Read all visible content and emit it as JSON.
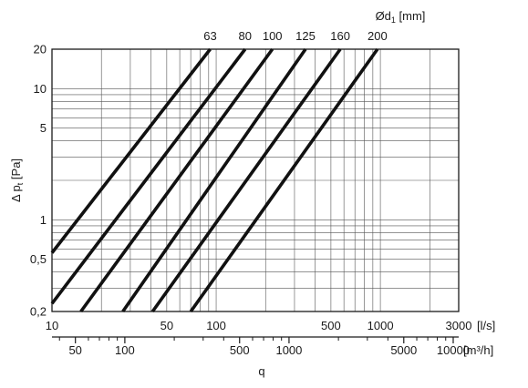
{
  "chart_data": {
    "type": "line",
    "title": "",
    "top_label": {
      "prefix": "Ød",
      "subscript": "1",
      "suffix": " [mm]"
    },
    "ylabel": {
      "prefix": "Δ p",
      "subscript": "t",
      "suffix": " [Pa]"
    },
    "x_primary": {
      "unit": "[l/s]",
      "scale": "log",
      "range": [
        10,
        3000
      ],
      "ticks": [
        10,
        50,
        100,
        500,
        1000,
        3000
      ],
      "tick_labels": [
        "10",
        "50",
        "100",
        "500",
        "1000",
        "3000"
      ]
    },
    "x_secondary": {
      "unit": "[m³/h]",
      "scale": "log",
      "ticks": [
        50,
        100,
        500,
        1000,
        5000,
        10000
      ],
      "tick_labels": [
        "50",
        "100",
        "500",
        "1000",
        "5000",
        "10000"
      ]
    },
    "xlabel": "q",
    "y": {
      "scale": "log",
      "range": [
        0.2,
        20
      ],
      "ticks": [
        0.2,
        0.5,
        1,
        5,
        10,
        20
      ],
      "tick_labels": [
        "0,2",
        "0,5",
        "1",
        "5",
        "10",
        "20"
      ]
    },
    "grid": true,
    "series": [
      {
        "name": "63",
        "points": [
          [
            10,
            0.56
          ],
          [
            92,
            20
          ]
        ]
      },
      {
        "name": "80",
        "points": [
          [
            10,
            0.23
          ],
          [
            150,
            20
          ]
        ]
      },
      {
        "name": "100",
        "points": [
          [
            15,
            0.2
          ],
          [
            220,
            20
          ]
        ]
      },
      {
        "name": "125",
        "points": [
          [
            27,
            0.2
          ],
          [
            350,
            20
          ]
        ]
      },
      {
        "name": "160",
        "points": [
          [
            41,
            0.2
          ],
          [
            570,
            20
          ]
        ]
      },
      {
        "name": "200",
        "points": [
          [
            70,
            0.2
          ],
          [
            960,
            20
          ]
        ]
      }
    ]
  }
}
